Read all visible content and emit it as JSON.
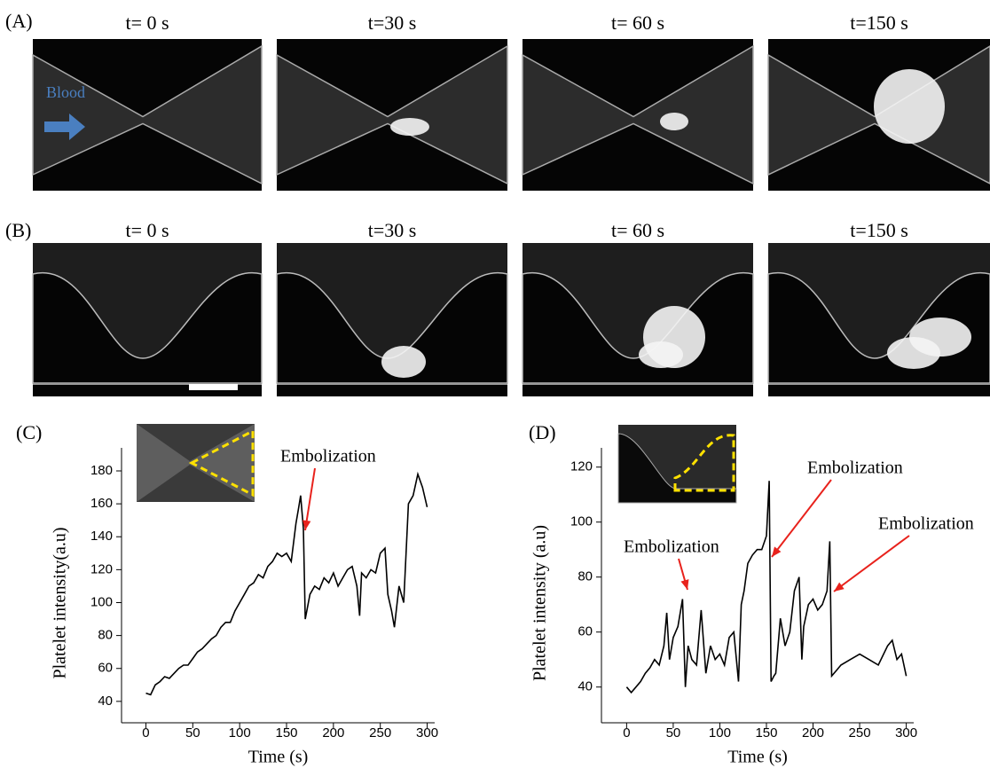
{
  "panels": {
    "A": {
      "label": "(A)",
      "times": [
        "t= 0 s",
        "t=30 s",
        "t= 60 s",
        "t=150 s"
      ]
    },
    "B": {
      "label": "(B)",
      "times": [
        "t= 0 s",
        "t=30 s",
        "t= 60 s",
        "t=150 s"
      ]
    }
  },
  "blood_label": "Blood",
  "chart_data": [
    {
      "type": "line",
      "panel_label": "(C)",
      "xlabel": "Time (s)",
      "ylabel": "Platelet intensity(a.u)",
      "annotations": [
        "Embolization"
      ],
      "xlim": [
        -26,
        308
      ],
      "ylim": [
        27,
        194
      ],
      "xticks": [
        0,
        50,
        100,
        150,
        200,
        250,
        300
      ],
      "yticks": [
        40,
        60,
        80,
        100,
        120,
        140,
        160,
        180
      ],
      "x": [
        0,
        5,
        10,
        15,
        20,
        25,
        30,
        35,
        40,
        45,
        50,
        55,
        60,
        65,
        70,
        75,
        80,
        85,
        90,
        95,
        100,
        105,
        110,
        115,
        120,
        125,
        130,
        135,
        140,
        145,
        150,
        155,
        160,
        163,
        165,
        168,
        170,
        175,
        180,
        185,
        190,
        195,
        200,
        205,
        210,
        215,
        220,
        225,
        228,
        230,
        235,
        240,
        245,
        250,
        255,
        258,
        262,
        265,
        270,
        275,
        280,
        285,
        290,
        295,
        300
      ],
      "series": [
        {
          "color": "#000000",
          "values": [
            45,
            44,
            50,
            52,
            55,
            54,
            57,
            60,
            62,
            62,
            66,
            70,
            72,
            75,
            78,
            80,
            85,
            88,
            88,
            95,
            100,
            105,
            110,
            112,
            117,
            115,
            122,
            125,
            130,
            128,
            130,
            125,
            148,
            158,
            165,
            145,
            90,
            105,
            110,
            108,
            115,
            112,
            118,
            110,
            115,
            120,
            122,
            110,
            92,
            118,
            115,
            120,
            118,
            130,
            133,
            105,
            95,
            85,
            110,
            100,
            160,
            165,
            178,
            170,
            158
          ]
        }
      ]
    },
    {
      "type": "line",
      "panel_label": "(D)",
      "xlabel": "Time (s)",
      "ylabel": "Platelet intensity (a.u)",
      "annotations": [
        "Embolization",
        "Embolization",
        "Embolization"
      ],
      "xlim": [
        -27,
        308
      ],
      "ylim": [
        27,
        127
      ],
      "xticks": [
        0,
        50,
        100,
        150,
        200,
        250,
        300
      ],
      "yticks": [
        40,
        60,
        80,
        100,
        120
      ],
      "x": [
        0,
        5,
        10,
        15,
        20,
        25,
        30,
        35,
        40,
        43,
        46,
        50,
        55,
        60,
        63,
        66,
        70,
        75,
        80,
        85,
        90,
        95,
        100,
        105,
        110,
        115,
        120,
        123,
        126,
        130,
        135,
        140,
        145,
        150,
        153,
        155,
        158,
        160,
        165,
        170,
        175,
        180,
        185,
        188,
        190,
        195,
        200,
        205,
        210,
        215,
        218,
        220,
        225,
        230,
        240,
        250,
        260,
        270,
        280,
        285,
        290,
        295,
        300
      ],
      "series": [
        {
          "color": "#000000",
          "values": [
            40,
            38,
            40,
            42,
            45,
            47,
            50,
            48,
            55,
            67,
            50,
            58,
            62,
            72,
            40,
            55,
            50,
            48,
            68,
            45,
            55,
            50,
            52,
            48,
            58,
            60,
            42,
            70,
            75,
            85,
            88,
            90,
            90,
            95,
            115,
            42,
            44,
            45,
            65,
            55,
            60,
            75,
            80,
            50,
            62,
            70,
            72,
            68,
            70,
            75,
            93,
            44,
            46,
            48,
            50,
            52,
            50,
            48,
            55,
            57,
            50,
            52,
            44
          ]
        }
      ]
    }
  ]
}
